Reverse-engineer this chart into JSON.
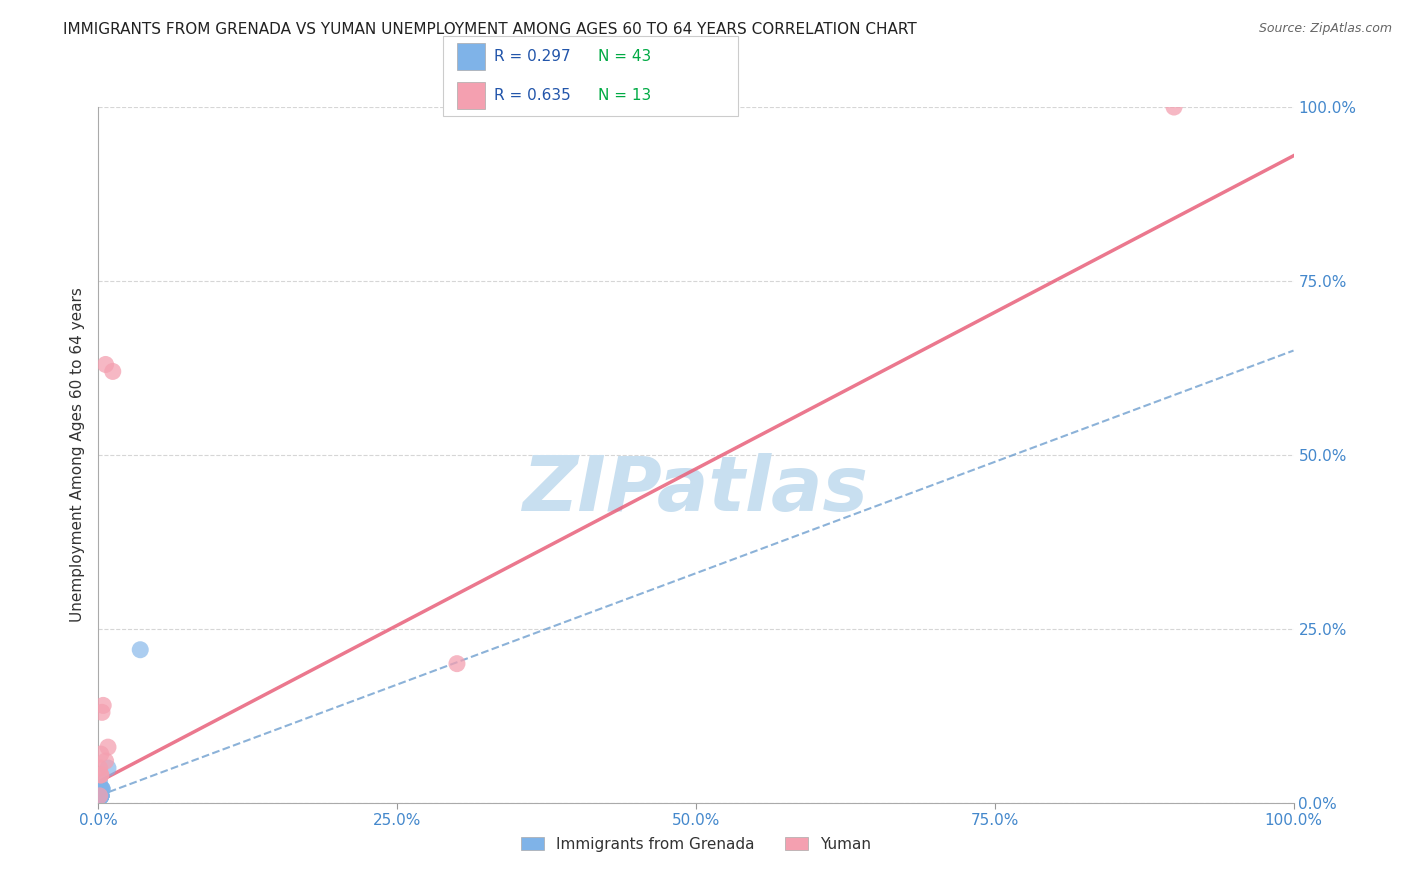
{
  "title": "IMMIGRANTS FROM GRENADA VS YUMAN UNEMPLOYMENT AMONG AGES 60 TO 64 YEARS CORRELATION CHART",
  "source_text": "Source: ZipAtlas.com",
  "ylabel": "Unemployment Among Ages 60 to 64 years",
  "watermark": "ZIPatlas",
  "xmin": 0.0,
  "xmax": 1.0,
  "ymin": 0.0,
  "ymax": 1.0,
  "xticks": [
    0.0,
    0.25,
    0.5,
    0.75,
    1.0
  ],
  "yticks": [
    0.0,
    0.25,
    0.5,
    0.75,
    1.0
  ],
  "xticklabels": [
    "0.0%",
    "25.0%",
    "50.0%",
    "75.0%",
    "100.0%"
  ],
  "yticklabels": [
    "0.0%",
    "25.0%",
    "50.0%",
    "75.0%",
    "100.0%"
  ],
  "series1_label": "Immigrants from Grenada",
  "series1_color": "#7FB3E8",
  "series1_R": 0.297,
  "series1_N": 43,
  "series2_label": "Yuman",
  "series2_color": "#F4A0B0",
  "series2_R": 0.635,
  "series2_N": 13,
  "blue_scatter_x": [
    0.001,
    0.002,
    0.001,
    0.002,
    0.003,
    0.001,
    0.002,
    0.001,
    0.001,
    0.002,
    0.001,
    0.002,
    0.001,
    0.001,
    0.002,
    0.001,
    0.002,
    0.001,
    0.001,
    0.002,
    0.001,
    0.001,
    0.002,
    0.001,
    0.001,
    0.002,
    0.001,
    0.001,
    0.002,
    0.001,
    0.001,
    0.002,
    0.001,
    0.001,
    0.003,
    0.002,
    0.001,
    0.002,
    0.001,
    0.002,
    0.003,
    0.035,
    0.008
  ],
  "blue_scatter_y": [
    0.01,
    0.01,
    0.02,
    0.01,
    0.02,
    0.01,
    0.02,
    0.03,
    0.01,
    0.02,
    0.01,
    0.01,
    0.02,
    0.01,
    0.01,
    0.02,
    0.01,
    0.01,
    0.02,
    0.01,
    0.01,
    0.02,
    0.01,
    0.01,
    0.02,
    0.01,
    0.02,
    0.01,
    0.01,
    0.02,
    0.01,
    0.01,
    0.02,
    0.01,
    0.02,
    0.01,
    0.02,
    0.01,
    0.02,
    0.01,
    0.02,
    0.22,
    0.05
  ],
  "pink_scatter_x": [
    0.001,
    0.006,
    0.012,
    0.002,
    0.003,
    0.004,
    0.002,
    0.001,
    0.3,
    0.002,
    0.006,
    0.008,
    0.9
  ],
  "pink_scatter_y": [
    0.01,
    0.63,
    0.62,
    0.07,
    0.13,
    0.14,
    0.04,
    0.05,
    0.2,
    0.04,
    0.06,
    0.08,
    1.0
  ],
  "blue_trendline_x": [
    0.0,
    1.0
  ],
  "blue_trendline_y": [
    0.01,
    0.65
  ],
  "pink_trendline_x": [
    0.0,
    1.0
  ],
  "pink_trendline_y": [
    0.03,
    0.93
  ],
  "grid_color": "#cccccc",
  "title_fontsize": 11,
  "axis_color": "#4488cc",
  "legend_R_color": "#2255aa",
  "watermark_color": "#c8dff0",
  "watermark_fontsize": 55,
  "background_color": "#ffffff"
}
